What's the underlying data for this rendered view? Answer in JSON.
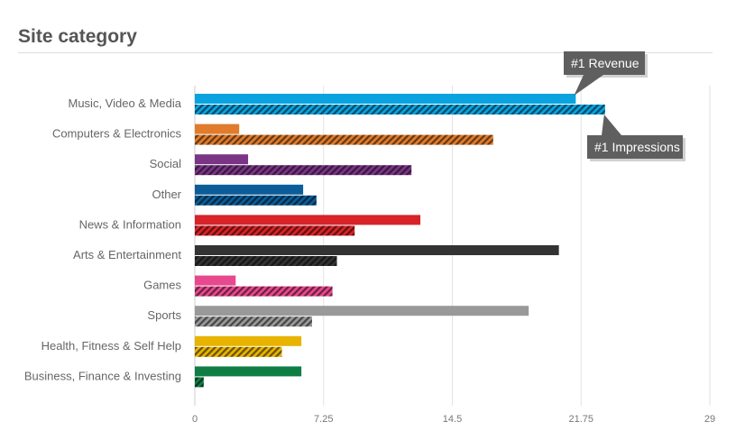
{
  "title": "Site category",
  "chart_data": {
    "type": "bar",
    "orientation": "horizontal",
    "title": "Site category",
    "categories": [
      "Music, Video & Media",
      "Computers & Electronics",
      "Social",
      "Other",
      "News & Information",
      "Arts & Entertainment",
      "Games",
      "Sports",
      "Health, Fitness & Self Help",
      "Business, Finance & Investing"
    ],
    "colors": [
      "#0aa3e0",
      "#e07c2c",
      "#7a3585",
      "#0b5d99",
      "#d82328",
      "#333333",
      "#e8488d",
      "#999999",
      "#e8b400",
      "#0e7e45"
    ],
    "series": [
      {
        "style": "solid",
        "values": [
          21.45,
          2.5,
          3.0,
          6.1,
          12.7,
          20.5,
          2.3,
          18.8,
          6.0,
          6.0
        ]
      },
      {
        "style": "hatched",
        "values": [
          23.1,
          16.8,
          12.2,
          6.85,
          9.0,
          8.0,
          7.75,
          6.6,
          4.9,
          0.5
        ]
      }
    ],
    "xlim": [
      0,
      29
    ],
    "xticks": [
      "0",
      "7.25",
      "14.5",
      "21.75",
      "29"
    ],
    "grid": true,
    "annotations": [
      {
        "text": "#1 Revenue",
        "category": "Music, Video & Media",
        "series": 0
      },
      {
        "text": "#1 Impressions",
        "category": "Music, Video & Media",
        "series": 1
      }
    ]
  }
}
